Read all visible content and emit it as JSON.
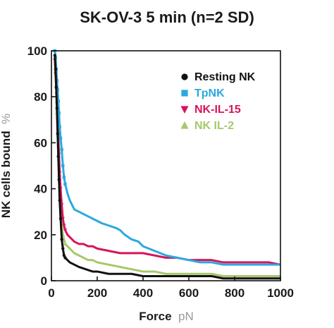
{
  "chart_data": {
    "type": "line",
    "title": "SK-OV-3 5 min (n=2 SD)",
    "xlabel": "Force",
    "xlabel_unit": "pN",
    "ylabel": "NK cells bound",
    "ylabel_unit": "%",
    "xlim": [
      0,
      1000
    ],
    "ylim": [
      0,
      100
    ],
    "xticks": [
      0,
      200,
      400,
      600,
      800,
      1000
    ],
    "yticks": [
      0,
      20,
      40,
      60,
      80,
      100
    ],
    "grid": false,
    "legend_position": "top-right",
    "series": [
      {
        "name": "Resting NK",
        "color": "#111111",
        "marker": "circle",
        "x": [
          15,
          18,
          21,
          24,
          27,
          30,
          33,
          36,
          40,
          45,
          50,
          55,
          60,
          70,
          80,
          100,
          120,
          150,
          180,
          200,
          250,
          300,
          350,
          400,
          450,
          500,
          550,
          600,
          650,
          700,
          750,
          800,
          850,
          900,
          950,
          1000
        ],
        "y": [
          98,
          92,
          84,
          75,
          64,
          54,
          44,
          35,
          27,
          18,
          14,
          11,
          10,
          9,
          8,
          7,
          6,
          5,
          4,
          4,
          3,
          3,
          3,
          2,
          2,
          2,
          2,
          2,
          2,
          2,
          1,
          1,
          1,
          1,
          1,
          1
        ]
      },
      {
        "name": "TpNK",
        "color": "#2aa9e0",
        "marker": "square",
        "x": [
          15,
          18,
          21,
          24,
          27,
          30,
          33,
          36,
          40,
          45,
          50,
          55,
          60,
          70,
          80,
          90,
          100,
          120,
          140,
          160,
          180,
          200,
          220,
          250,
          280,
          300,
          320,
          350,
          380,
          400,
          450,
          500,
          550,
          600,
          650,
          700,
          750,
          800,
          850,
          900,
          950,
          1000
        ],
        "y": [
          100,
          97,
          92,
          87,
          83,
          78,
          73,
          67,
          62,
          57,
          50,
          45,
          42,
          38,
          35,
          33,
          31,
          30,
          29,
          28,
          27,
          26,
          25,
          24,
          23,
          22,
          20,
          18,
          17,
          15,
          13,
          11,
          10,
          9,
          8,
          8,
          7,
          7,
          7,
          7,
          7,
          7
        ]
      },
      {
        "name": "NK-IL-15",
        "color": "#d8145b",
        "marker": "triangle-down",
        "x": [
          15,
          18,
          21,
          24,
          27,
          30,
          33,
          36,
          40,
          45,
          50,
          55,
          60,
          70,
          80,
          90,
          100,
          120,
          140,
          160,
          180,
          200,
          250,
          300,
          350,
          400,
          450,
          500,
          550,
          600,
          650,
          700,
          750,
          800,
          850,
          900,
          950,
          1000
        ],
        "y": [
          96,
          90,
          84,
          77,
          70,
          62,
          55,
          47,
          40,
          33,
          27,
          24,
          22,
          20,
          19,
          18,
          17,
          16,
          16,
          15,
          15,
          14,
          13,
          12,
          12,
          12,
          11,
          10,
          10,
          9,
          9,
          9,
          8,
          8,
          8,
          8,
          8,
          7
        ]
      },
      {
        "name": "NK IL-2",
        "color": "#a5c96a",
        "marker": "triangle-up",
        "x": [
          15,
          18,
          21,
          24,
          27,
          30,
          33,
          36,
          40,
          45,
          50,
          55,
          60,
          70,
          80,
          90,
          100,
          120,
          140,
          160,
          180,
          200,
          250,
          300,
          350,
          400,
          450,
          500,
          550,
          600,
          650,
          700,
          750,
          800,
          850,
          900,
          950,
          1000
        ],
        "y": [
          97,
          90,
          82,
          73,
          64,
          55,
          46,
          38,
          30,
          24,
          20,
          18,
          16,
          15,
          14,
          13,
          12,
          11,
          10,
          9,
          9,
          8,
          7,
          6,
          5,
          4,
          4,
          3,
          3,
          3,
          3,
          3,
          2,
          2,
          2,
          2,
          2,
          2
        ]
      }
    ]
  }
}
